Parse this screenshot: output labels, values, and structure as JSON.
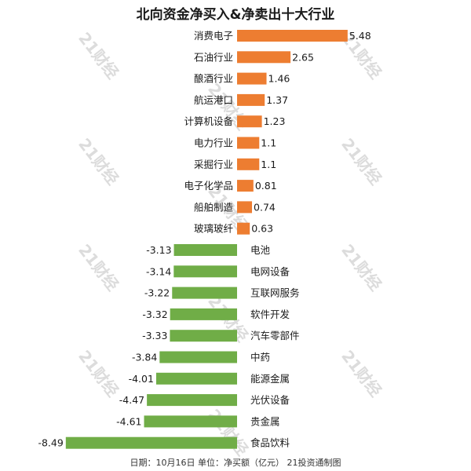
{
  "title": "北向资金净买入&净卖出十大行业",
  "footer": "日期：10月16日 单位：净买额（亿元） 21投资通制图",
  "watermark": "21财经",
  "colors": {
    "positive": "#ed7d31",
    "negative": "#70ad47"
  },
  "chart_data": {
    "type": "bar",
    "orientation": "horizontal",
    "categories": [
      "消费电子",
      "石油行业",
      "酿酒行业",
      "航运港口",
      "计算机设备",
      "电力行业",
      "采掘行业",
      "电子化学品",
      "船舶制造",
      "玻璃玻纤",
      "电池",
      "电网设备",
      "互联网服务",
      "软件开发",
      "汽车零部件",
      "中药",
      "能源金属",
      "光伏设备",
      "贵金属",
      "食品饮料"
    ],
    "values": [
      5.48,
      2.65,
      1.46,
      1.37,
      1.23,
      1.1,
      1.1,
      0.81,
      0.74,
      0.63,
      -3.13,
      -3.14,
      -3.22,
      -3.32,
      -3.33,
      -3.84,
      -4.01,
      -4.47,
      -4.61,
      -8.49
    ],
    "value_labels": [
      "5.48",
      "2.65",
      "1.46",
      "1.37",
      "1.23",
      "1.1",
      "1.1",
      "0.81",
      "0.74",
      "0.63",
      "-3.13",
      "-3.14",
      "-3.22",
      "-3.32",
      "-3.33",
      "-3.84",
      "-4.01",
      "-4.47",
      "-4.61",
      "-8.49"
    ],
    "title": "北向资金净买入&净卖出十大行业",
    "xlabel": "",
    "ylabel": "",
    "xlim": [
      -8.49,
      5.48
    ],
    "grid": false,
    "legend": "none"
  }
}
